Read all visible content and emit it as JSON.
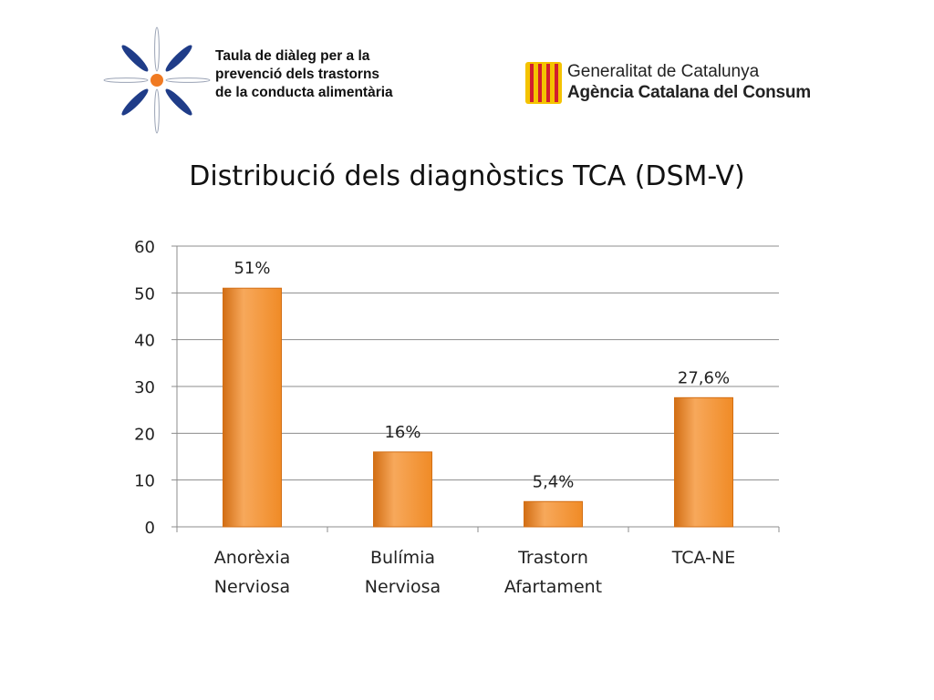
{
  "logos": {
    "left": {
      "lines": [
        "Taula de diàleg per a la",
        "prevenció dels trastorns",
        "de la conducta alimentària"
      ]
    },
    "right": {
      "line1": "Generalitat de Catalunya",
      "line2": "Agència Catalana del Consum"
    }
  },
  "colors": {
    "bar": "#F08B26",
    "bar_light": "#F7A85B",
    "bar_dark": "#D26E14",
    "grid": "#8C8C8C",
    "logo_blue": "#1F3C88",
    "logo_orange": "#F07A22",
    "senyera_red": "#D11F2E",
    "senyera_yellow": "#F4C300"
  },
  "chart_data": {
    "type": "bar",
    "title": "Distribució dels diagnòstics TCA (DSM-V)",
    "categories": [
      [
        "Anorèxia",
        "Nerviosa"
      ],
      [
        "Bulímia",
        "Nerviosa"
      ],
      [
        "Trastorn",
        "Afartament"
      ],
      [
        "TCA-NE"
      ]
    ],
    "values": [
      51,
      16,
      5.4,
      27.6
    ],
    "data_labels": [
      "51%",
      "16%",
      "5,4%",
      "27,6%"
    ],
    "ylim": [
      0,
      60
    ],
    "yticks": [
      0,
      10,
      20,
      30,
      40,
      50,
      60
    ],
    "grid": true,
    "legend": "none"
  }
}
